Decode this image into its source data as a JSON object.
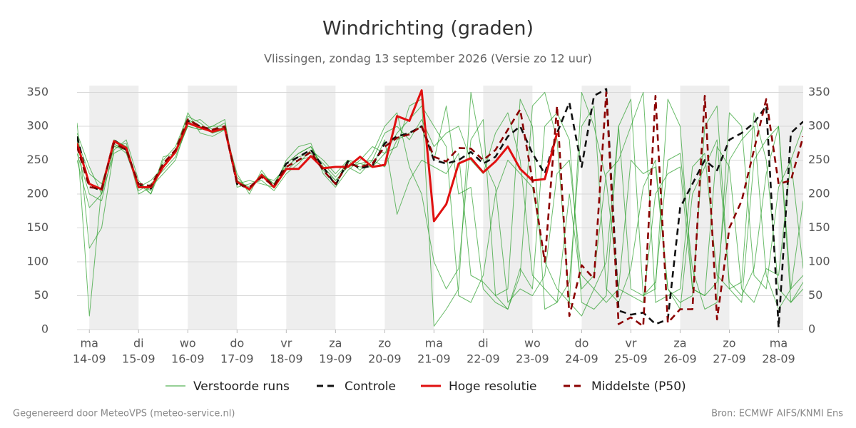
{
  "chart_data": {
    "type": "line",
    "title": "Windrichting (graden)",
    "subtitle": "Vlissingen, zondag 13 september 2026 (Versie zo 12 uur)",
    "footer_left": "Gegenereerd door MeteoVPS (meteo-service.nl)",
    "footer_right": "Bron: ECMWF AIFS/KNMI Ens",
    "x": [
      -0.25,
      0,
      0.25,
      0.5,
      0.75,
      1,
      1.25,
      1.5,
      1.75,
      2,
      2.25,
      2.5,
      2.75,
      3,
      3.25,
      3.5,
      3.75,
      4,
      4.25,
      4.5,
      4.75,
      5,
      5.25,
      5.5,
      5.75,
      6,
      6.25,
      6.5,
      6.75,
      7,
      7.25,
      7.5,
      7.75,
      8,
      8.25,
      8.5,
      8.75,
      9,
      9.25,
      9.5,
      9.75,
      10,
      10.25,
      10.5,
      10.75,
      11,
      11.25,
      11.5,
      11.75,
      12,
      12.25,
      12.5,
      12.75,
      13,
      13.25,
      13.5,
      13.75,
      14,
      14.25,
      14.5
    ],
    "xlim": [
      -0.25,
      14.5
    ],
    "xticks": [
      {
        "value": 0,
        "label": [
          "ma",
          "14-09"
        ]
      },
      {
        "value": 1,
        "label": [
          "di",
          "15-09"
        ]
      },
      {
        "value": 2,
        "label": [
          "wo",
          "16-09"
        ]
      },
      {
        "value": 3,
        "label": [
          "do",
          "17-09"
        ]
      },
      {
        "value": 4,
        "label": [
          "vr",
          "18-09"
        ]
      },
      {
        "value": 5,
        "label": [
          "za",
          "19-09"
        ]
      },
      {
        "value": 6,
        "label": [
          "zo",
          "20-09"
        ]
      },
      {
        "value": 7,
        "label": [
          "ma",
          "21-09"
        ]
      },
      {
        "value": 8,
        "label": [
          "di",
          "22-09"
        ]
      },
      {
        "value": 9,
        "label": [
          "wo",
          "23-09"
        ]
      },
      {
        "value": 10,
        "label": [
          "do",
          "24-09"
        ]
      },
      {
        "value": 11,
        "label": [
          "vr",
          "25-09"
        ]
      },
      {
        "value": 12,
        "label": [
          "za",
          "26-09"
        ]
      },
      {
        "value": 13,
        "label": [
          "zo",
          "27-09"
        ]
      },
      {
        "value": 14,
        "label": [
          "ma",
          "28-09"
        ]
      }
    ],
    "ylim": [
      0,
      360
    ],
    "yticks": [
      0,
      50,
      100,
      150,
      200,
      250,
      300,
      350
    ],
    "y2lim": [
      0,
      360
    ],
    "y2ticks": [
      0,
      50,
      100,
      150,
      200,
      250,
      300,
      350
    ],
    "grid": true,
    "ensemble": {
      "name": "Verstoorde runs",
      "color": "#2ca02c",
      "members": [
        [
          290,
          240,
          200,
          280,
          270,
          215,
          205,
          250,
          270,
          315,
          305,
          290,
          300,
          225,
          205,
          230,
          215,
          245,
          260,
          270,
          240,
          220,
          240,
          245,
          250,
          290,
          300,
          280,
          310,
          270,
          290,
          300,
          250,
          230,
          290,
          320,
          250,
          80,
          60,
          40,
          70,
          300,
          330,
          60,
          40,
          90,
          210,
          250,
          60,
          30,
          200,
          240,
          280,
          70,
          50,
          90,
          230,
          300,
          40,
          60
        ],
        [
          260,
          200,
          190,
          270,
          275,
          205,
          215,
          235,
          255,
          300,
          295,
          300,
          310,
          210,
          215,
          220,
          205,
          230,
          245,
          265,
          250,
          230,
          250,
          235,
          260,
          300,
          320,
          240,
          200,
          100,
          60,
          90,
          280,
          310,
          50,
          30,
          80,
          330,
          350,
          280,
          40,
          20,
          60,
          100,
          300,
          340,
          50,
          70,
          250,
          260,
          90,
          30,
          40,
          320,
          300,
          80,
          60,
          210,
          250,
          90
        ],
        [
          305,
          120,
          150,
          265,
          280,
          220,
          200,
          255,
          260,
          320,
          290,
          285,
          295,
          230,
          200,
          235,
          210,
          250,
          270,
          275,
          230,
          210,
          235,
          250,
          270,
          260,
          290,
          310,
          330,
          300,
          270,
          50,
          40,
          80,
          200,
          250,
          230,
          210,
          100,
          60,
          40,
          350,
          300,
          220,
          60,
          50,
          40,
          200,
          230,
          240,
          60,
          50,
          70,
          250,
          280,
          300,
          80,
          30,
          60,
          190
        ],
        [
          280,
          230,
          215,
          275,
          260,
          210,
          220,
          240,
          265,
          310,
          300,
          290,
          295,
          220,
          210,
          225,
          220,
          240,
          255,
          260,
          245,
          225,
          245,
          240,
          240,
          280,
          170,
          220,
          250,
          240,
          230,
          260,
          80,
          70,
          50,
          60,
          340,
          300,
          30,
          40,
          200,
          60,
          80,
          230,
          250,
          300,
          350,
          40,
          50,
          60,
          240,
          260,
          80,
          60,
          70,
          320,
          250,
          60,
          40,
          70
        ],
        [
          250,
          180,
          200,
          260,
          270,
          200,
          210,
          230,
          250,
          305,
          310,
          295,
          305,
          215,
          220,
          215,
          210,
          235,
          250,
          255,
          240,
          220,
          240,
          230,
          250,
          240,
          280,
          290,
          300,
          250,
          330,
          200,
          210,
          60,
          40,
          30,
          90,
          60,
          300,
          320,
          280,
          40,
          30,
          50,
          300,
          60,
          50,
          60,
          340,
          300,
          60,
          50,
          270,
          240,
          60,
          40,
          90,
          80,
          250,
          300
        ],
        [
          285,
          20,
          210,
          270,
          265,
          215,
          200,
          245,
          260,
          300,
          295,
          300,
          300,
          220,
          205,
          230,
          215,
          245,
          260,
          270,
          235,
          215,
          250,
          245,
          240,
          260,
          270,
          330,
          340,
          5,
          30,
          60,
          350,
          250,
          210,
          40,
          60,
          50,
          80,
          230,
          250,
          80,
          60,
          40,
          60,
          250,
          230,
          240,
          60,
          40,
          50,
          300,
          330,
          60,
          40,
          250,
          280,
          300,
          60,
          80
        ]
      ]
    },
    "series": [
      {
        "name": "Controle",
        "color": "#111111",
        "style": "dashed",
        "values": [
          285,
          212,
          205,
          280,
          265,
          212,
          208,
          245,
          262,
          308,
          300,
          293,
          298,
          215,
          208,
          228,
          212,
          245,
          255,
          265,
          240,
          213,
          248,
          238,
          242,
          275,
          285,
          290,
          300,
          250,
          245,
          250,
          262,
          245,
          255,
          285,
          300,
          260,
          230,
          290,
          335,
          240,
          345,
          355,
          28,
          22,
          25,
          8,
          15,
          180,
          215,
          250,
          235,
          280,
          290,
          305,
          330,
          3,
          290,
          307
        ]
      },
      {
        "name": "Hoge resolutie",
        "color": "#e01010",
        "style": "solid",
        "values": [
          275,
          215,
          207,
          278,
          268,
          210,
          210,
          240,
          262,
          305,
          298,
          292,
          297,
          218,
          207,
          228,
          210,
          237,
          237,
          256,
          238,
          240,
          240,
          255,
          240,
          243,
          315,
          308,
          353,
          160,
          185,
          245,
          253,
          232,
          248,
          270,
          237,
          220,
          222,
          290,
          null,
          null,
          null,
          null,
          null,
          null,
          null,
          null,
          null,
          null,
          null,
          null,
          null,
          null,
          null,
          null,
          null,
          null,
          null,
          null
        ]
      },
      {
        "name": "Middelste (P50)",
        "color": "#8b0000",
        "style": "dashed",
        "values": [
          270,
          210,
          208,
          275,
          265,
          215,
          212,
          245,
          265,
          310,
          300,
          295,
          300,
          215,
          210,
          225,
          212,
          240,
          250,
          262,
          235,
          215,
          245,
          240,
          245,
          270,
          283,
          288,
          300,
          255,
          248,
          268,
          267,
          250,
          265,
          295,
          325,
          220,
          100,
          330,
          20,
          95,
          75,
          350,
          8,
          18,
          5,
          345,
          10,
          30,
          30,
          345,
          15,
          150,
          190,
          265,
          340,
          215,
          220,
          285
        ]
      }
    ]
  }
}
